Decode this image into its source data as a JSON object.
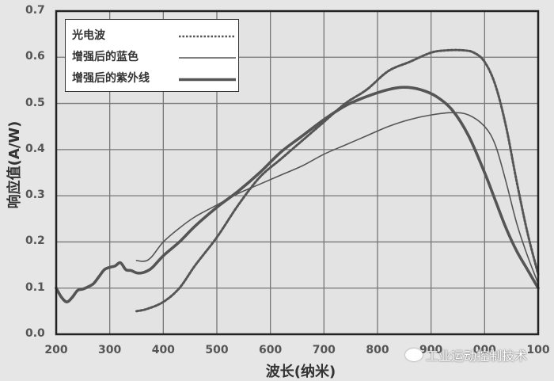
{
  "chart_data": {
    "type": "line",
    "title": "",
    "xlabel": "波长(纳米)",
    "ylabel": "响应值(A/W)",
    "xlim": [
      200,
      1100
    ],
    "ylim": [
      0.0,
      0.7
    ],
    "xticks": [
      "200",
      "300",
      "400",
      "500",
      "600",
      "700",
      "800",
      "900",
      "1000",
      "1100"
    ],
    "yticks": [
      "0.0",
      "0.1",
      "0.2",
      "0.3",
      "0.4",
      "0.5",
      "0.6",
      "0.7"
    ],
    "grid": true,
    "legend_position": "upper left",
    "series": [
      {
        "name": "光电波",
        "style": "dotted",
        "x": [
          350,
          370,
          400,
          430,
          460,
          500,
          540,
          580,
          620,
          660,
          700,
          740,
          780,
          820,
          860,
          900,
          930,
          960,
          980,
          1000,
          1020,
          1040,
          1060,
          1080,
          1100
        ],
        "y": [
          0.05,
          0.055,
          0.07,
          0.1,
          0.15,
          0.21,
          0.28,
          0.34,
          0.38,
          0.42,
          0.46,
          0.5,
          0.53,
          0.57,
          0.59,
          0.61,
          0.615,
          0.615,
          0.61,
          0.59,
          0.54,
          0.45,
          0.33,
          0.22,
          0.13
        ]
      },
      {
        "name": "增强后的蓝色",
        "style": "thin-solid",
        "x": [
          350,
          360,
          370,
          380,
          400,
          430,
          460,
          500,
          540,
          580,
          620,
          660,
          700,
          740,
          780,
          820,
          860,
          900,
          940,
          970,
          1000,
          1020,
          1040,
          1060,
          1080,
          1100
        ],
        "y": [
          0.16,
          0.158,
          0.16,
          0.17,
          0.2,
          0.23,
          0.255,
          0.28,
          0.305,
          0.325,
          0.345,
          0.365,
          0.39,
          0.41,
          0.43,
          0.45,
          0.465,
          0.475,
          0.48,
          0.475,
          0.45,
          0.41,
          0.33,
          0.24,
          0.17,
          0.11
        ]
      },
      {
        "name": "增强后的紫外线",
        "style": "thick-solid",
        "x": [
          200,
          210,
          220,
          230,
          240,
          250,
          260,
          270,
          280,
          290,
          300,
          310,
          320,
          330,
          340,
          350,
          360,
          370,
          380,
          400,
          430,
          460,
          500,
          540,
          580,
          620,
          660,
          700,
          740,
          780,
          820,
          850,
          880,
          910,
          940,
          970,
          1000,
          1020,
          1040,
          1060,
          1080,
          1100
        ],
        "y": [
          0.1,
          0.08,
          0.07,
          0.08,
          0.095,
          0.098,
          0.103,
          0.11,
          0.125,
          0.14,
          0.145,
          0.148,
          0.155,
          0.14,
          0.138,
          0.133,
          0.133,
          0.137,
          0.145,
          0.17,
          0.2,
          0.235,
          0.275,
          0.31,
          0.35,
          0.395,
          0.43,
          0.465,
          0.495,
          0.515,
          0.53,
          0.535,
          0.53,
          0.515,
          0.485,
          0.43,
          0.35,
          0.29,
          0.23,
          0.18,
          0.14,
          0.1
        ]
      }
    ]
  },
  "legend": {
    "items": [
      {
        "label": "光电波"
      },
      {
        "label": "增强后的蓝色"
      },
      {
        "label": "增强后的紫外线"
      }
    ]
  },
  "watermark": {
    "text": "工业运动控制技术",
    "icon": "wechat-icon"
  },
  "colors": {
    "background": "#e6e6e6",
    "grid": "#777777",
    "axis": "#222222",
    "series": "#555555"
  }
}
